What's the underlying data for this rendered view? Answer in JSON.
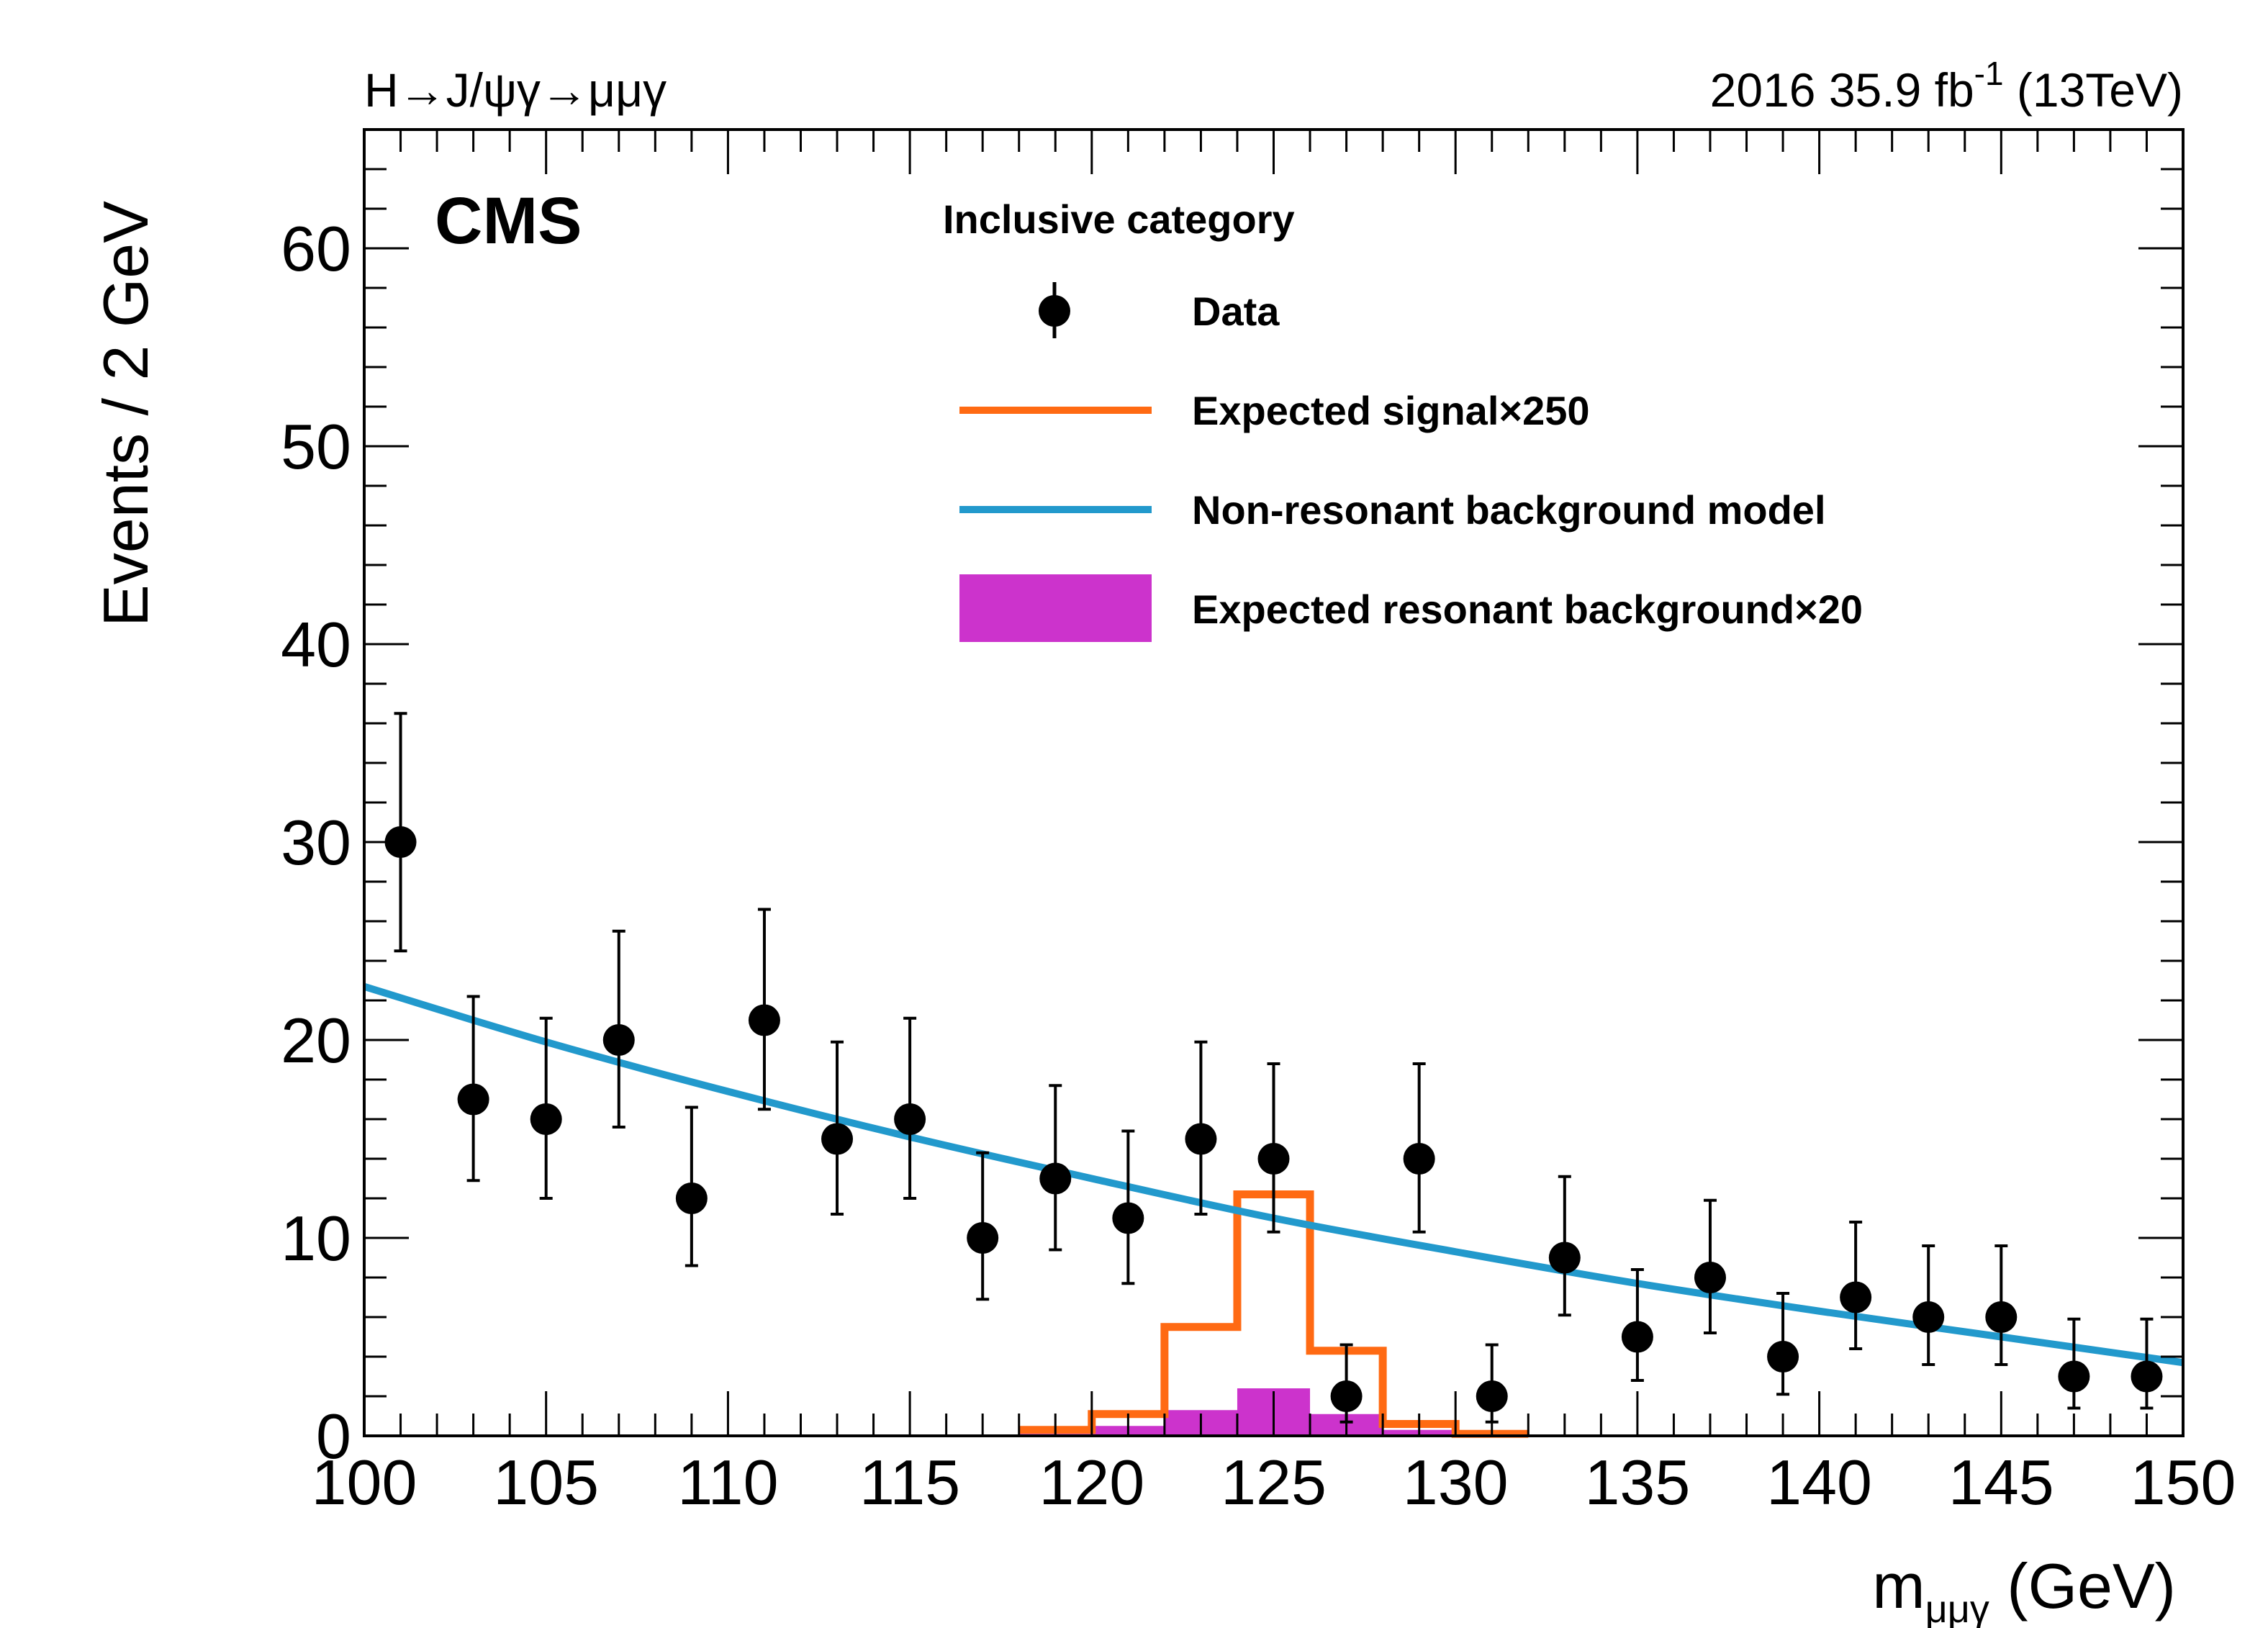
{
  "header": {
    "process_label": "H→J/ψγ→μμγ",
    "lumi_main": "2016 35.9 fb",
    "lumi_sup": "-1",
    "lumi_energy": " (13TeV)",
    "experiment": "CMS"
  },
  "chart_data": {
    "type": "scatter",
    "title": "",
    "xlabel": "m",
    "xlabel_sub": "μμγ",
    "xlabel_unit": " (GeV)",
    "ylabel": "Events / 2 GeV",
    "xlim": [
      100,
      150
    ],
    "ylim": [
      0,
      66
    ],
    "x_ticks": [
      100,
      105,
      110,
      115,
      120,
      125,
      130,
      135,
      140,
      145,
      150
    ],
    "y_ticks": [
      0,
      10,
      20,
      30,
      40,
      50,
      60
    ],
    "grid": false,
    "legend": {
      "placement": "top-center",
      "header": "Inclusive category",
      "entries": [
        "Data",
        "Expected signal×250",
        "Non-resonant background model",
        "Expected resonant background×20"
      ]
    },
    "series": [
      {
        "name": "Data",
        "style": "points-with-errors",
        "color": "#000000",
        "x": [
          101,
          103,
          105,
          107,
          109,
          111,
          113,
          115,
          117,
          119,
          121,
          123,
          125,
          127,
          129,
          131,
          133,
          135,
          137,
          139,
          141,
          143,
          145,
          147,
          149
        ],
        "y": [
          30,
          17,
          16,
          20,
          12,
          21,
          15,
          16,
          10,
          13,
          11,
          15,
          14,
          2,
          14,
          2,
          9,
          5,
          8,
          4,
          7,
          6,
          6,
          3,
          3
        ],
        "yerr_low": [
          5.5,
          4.1,
          4.0,
          4.4,
          3.4,
          4.5,
          3.8,
          4.0,
          3.1,
          3.6,
          3.3,
          3.8,
          3.7,
          1.3,
          3.7,
          1.3,
          2.9,
          2.2,
          2.8,
          1.9,
          2.6,
          2.4,
          2.4,
          1.6,
          1.6
        ],
        "yerr_high": [
          6.5,
          5.2,
          5.1,
          5.5,
          4.6,
          5.6,
          4.9,
          5.1,
          4.3,
          4.7,
          4.4,
          4.9,
          4.8,
          2.6,
          4.8,
          2.6,
          4.1,
          3.4,
          3.9,
          3.2,
          3.8,
          3.6,
          3.6,
          2.9,
          2.9
        ]
      },
      {
        "name": "Expected signal×250",
        "style": "step",
        "color": "#ff6a13",
        "bin_edges": [
          118,
          120,
          122,
          124,
          126,
          128,
          130,
          132
        ],
        "values": [
          0.3,
          1.1,
          5.5,
          12.2,
          4.3,
          0.6,
          0.1
        ]
      },
      {
        "name": "Non-resonant background model",
        "style": "line",
        "color": "#2299cc",
        "x": [
          100,
          105,
          110,
          115,
          120,
          125,
          130,
          135,
          140,
          145,
          150
        ],
        "y": [
          22.7,
          19.9,
          17.4,
          15.1,
          13.0,
          11.0,
          9.3,
          7.7,
          6.3,
          5.0,
          3.7
        ]
      },
      {
        "name": "Expected resonant background×20",
        "style": "filled-histogram",
        "color": "#cc33cc",
        "bin_edges": [
          118,
          120,
          122,
          124,
          126,
          128,
          130,
          132
        ],
        "values": [
          0.1,
          0.5,
          1.3,
          2.4,
          1.1,
          0.3,
          0.1
        ]
      }
    ]
  }
}
